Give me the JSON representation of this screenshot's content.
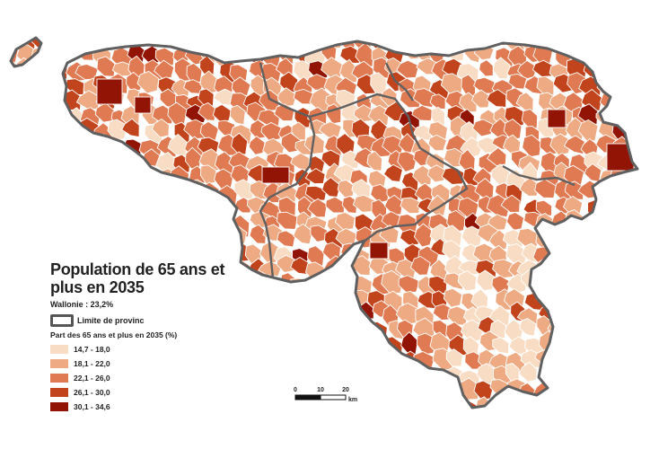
{
  "title": "Population de 65 ans et plus en 2035",
  "wallonie_label": "Wallonie :  23,2%",
  "province_legend_label": "Limite de provinc",
  "legend_title": "Part des 65 ans et plus en 2035 (%)",
  "legend": [
    {
      "label": "14,7 - 18,0",
      "color": "#f9dcc4"
    },
    {
      "label": "18,1 - 22,0",
      "color": "#eeaa83"
    },
    {
      "label": "22,1 - 26,0",
      "color": "#df7a52"
    },
    {
      "label": "26,1 - 30,0",
      "color": "#c2441c"
    },
    {
      "label": "30,1 - 34,6",
      "color": "#921404"
    }
  ],
  "scale": {
    "ticks": [
      "0",
      "10",
      "20"
    ],
    "unit": "km"
  },
  "colors": {
    "border": "#606060",
    "commune_line": "#ffffff"
  }
}
